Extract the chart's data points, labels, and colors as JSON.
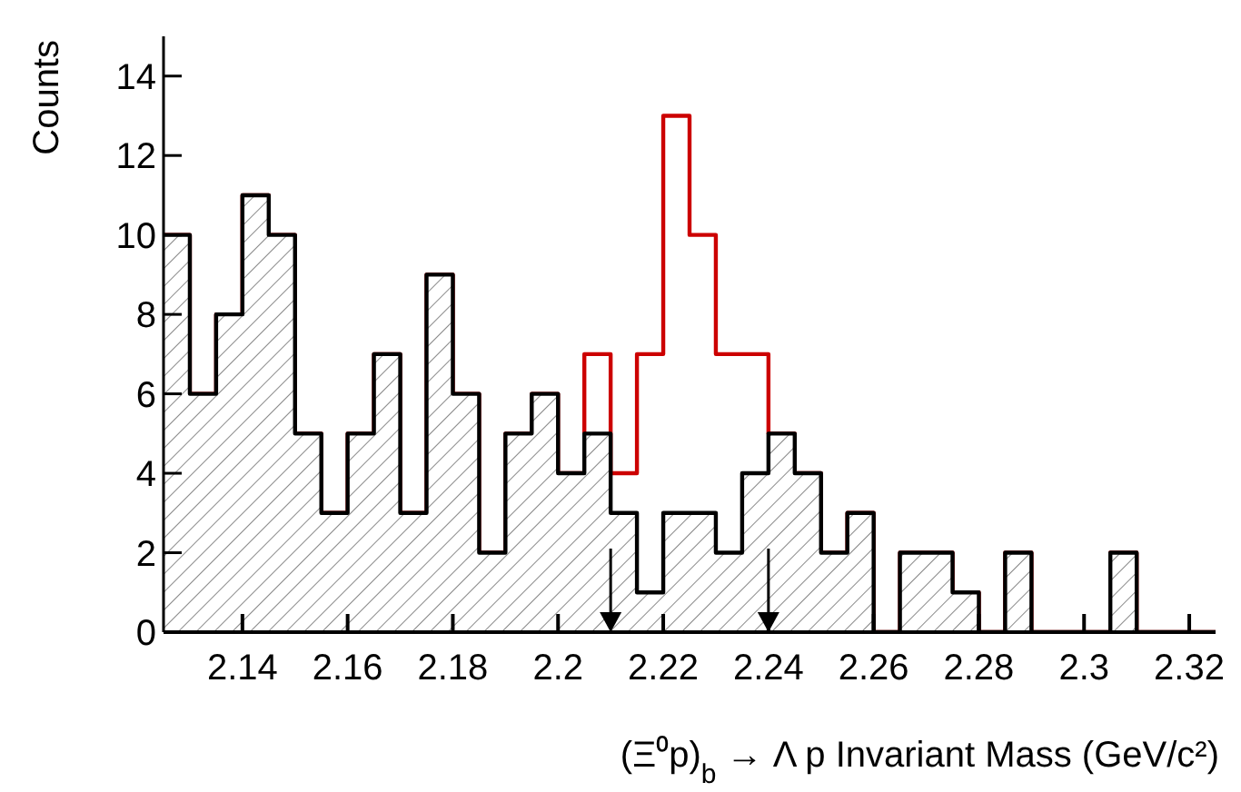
{
  "chart_data": {
    "type": "histogram",
    "xlabel": "(Ξ⁰p)$_{b}$ → Λ p Invariant Mass (GeV/c²)",
    "ylabel": "Counts",
    "bins": [
      2.125,
      2.13,
      2.135,
      2.14,
      2.145,
      2.15,
      2.155,
      2.16,
      2.165,
      2.17,
      2.175,
      2.18,
      2.185,
      2.19,
      2.195,
      2.2,
      2.205,
      2.21,
      2.215,
      2.22,
      2.225,
      2.23,
      2.235,
      2.24,
      2.245,
      2.25,
      2.255,
      2.26,
      2.265,
      2.27,
      2.275,
      2.28,
      2.285,
      2.29,
      2.295,
      2.3,
      2.305,
      2.31,
      2.315,
      2.32,
      2.325
    ],
    "series": [
      {
        "color": "#cc0000",
        "values": [
          10,
          6,
          8,
          11,
          10,
          5,
          3,
          5,
          7,
          3,
          9,
          6,
          2,
          5,
          6,
          4,
          7,
          4,
          7,
          13,
          10,
          7,
          7,
          5,
          4,
          2,
          3,
          0,
          2,
          2,
          1,
          0,
          2,
          0,
          0,
          0,
          2,
          0,
          0,
          0
        ]
      },
      {
        "color": "#000000",
        "values": [
          10,
          6,
          8,
          11,
          10,
          5,
          3,
          5,
          7,
          3,
          9,
          6,
          2,
          5,
          6,
          4,
          5,
          3,
          1,
          3,
          3,
          2,
          4,
          5,
          4,
          2,
          3,
          0,
          2,
          2,
          1,
          0,
          2,
          0,
          0,
          0,
          2,
          0,
          0,
          0
        ]
      }
    ],
    "xlim": [
      2.125,
      2.325
    ],
    "xticks": [
      2.14,
      2.16,
      2.18,
      2.2,
      2.22,
      2.24,
      2.26,
      2.28,
      2.3,
      2.32
    ],
    "ylim": [
      0,
      15
    ],
    "yticks": [
      0,
      2,
      4,
      6,
      8,
      10,
      12,
      14
    ],
    "ref_lines": [
      {
        "axis": "x",
        "value": 2.21,
        "color": "#000000"
      },
      {
        "axis": "x",
        "value": 2.24,
        "color": "#000000"
      }
    ],
    "grid": false
  }
}
